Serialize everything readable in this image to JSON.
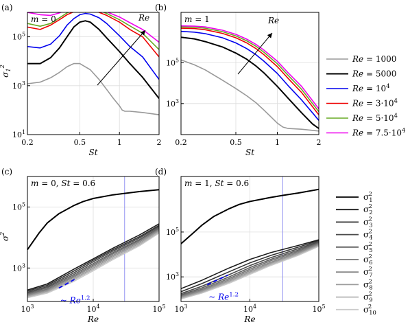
{
  "colors": {
    "gray": "#999999",
    "black": "#000000",
    "blue": "#0000ee",
    "red": "#ee0000",
    "green": "#66aa22",
    "magenta": "#ee00ee",
    "guide": "#7777ee",
    "fitline": "#0000ee"
  },
  "legend_top": {
    "entries": [
      {
        "label": "Re = 1000",
        "color": "#999999"
      },
      {
        "label": "Re = 5000",
        "color": "#000000"
      },
      {
        "label": "Re = 10^4",
        "color": "#0000ee"
      },
      {
        "label": "Re = 3·10^4",
        "color": "#ee0000"
      },
      {
        "label": "Re = 5·10^4",
        "color": "#66aa22"
      },
      {
        "label": "Re = 7.5·10^4",
        "color": "#ee00ee"
      }
    ]
  },
  "legend_bottom": {
    "entries": [
      {
        "label": "σ1²",
        "shade": "#000000"
      },
      {
        "label": "σ2²",
        "shade": "#1c1c1c"
      },
      {
        "label": "σ3²",
        "shade": "#333333"
      },
      {
        "label": "σ4²",
        "shade": "#4a4a4a"
      },
      {
        "label": "σ5²",
        "shade": "#5e5e5e"
      },
      {
        "label": "σ6²",
        "shade": "#737373"
      },
      {
        "label": "σ7²",
        "shade": "#888888"
      },
      {
        "label": "σ8²",
        "shade": "#9c9c9c"
      },
      {
        "label": "σ9²",
        "shade": "#b3b3b3"
      },
      {
        "label": "σ10²",
        "shade": "#cccccc"
      }
    ]
  },
  "chart_data": [
    {
      "panel": "(a)",
      "type": "line",
      "annotation": "m = 0",
      "arrow_label": "Re",
      "xlabel": "St",
      "ylabel": "σ1²",
      "xscale": "log",
      "yscale": "log",
      "xlim": [
        0.2,
        2
      ],
      "ylim": [
        10,
        1000000
      ],
      "xticks": [
        "0.2",
        "0.5",
        "1",
        "2"
      ],
      "yticks": [
        "10^1",
        "10^3",
        "10^5"
      ],
      "grid": true,
      "series": [
        {
          "name": "Re = 1000",
          "x": [
            0.2,
            0.25,
            0.3,
            0.35,
            0.4,
            0.45,
            0.5,
            0.6,
            0.7,
            0.8,
            0.9,
            1.0,
            1.05,
            1.1,
            1.2,
            1.5,
            2.0
          ],
          "y": [
            1200,
            1400,
            2100,
            3500,
            6000,
            8000,
            8000,
            4500,
            1800,
            700,
            300,
            150,
            100,
            90,
            90,
            80,
            65
          ]
        },
        {
          "name": "Re = 5000",
          "x": [
            0.2,
            0.25,
            0.3,
            0.35,
            0.4,
            0.45,
            0.5,
            0.55,
            0.6,
            0.7,
            0.8,
            1.0,
            1.2,
            1.5,
            2.0
          ],
          "y": [
            8000,
            8000,
            14000,
            35000,
            100000,
            250000,
            400000,
            450000,
            400000,
            200000,
            90000,
            25000,
            8000,
            2200,
            300
          ]
        },
        {
          "name": "Re = 10^4",
          "x": [
            0.2,
            0.25,
            0.3,
            0.35,
            0.4,
            0.45,
            0.5,
            0.55,
            0.6,
            0.7,
            0.8,
            1.0,
            1.2,
            1.5,
            2.0
          ],
          "y": [
            40000,
            35000,
            50000,
            110000,
            300000,
            550000,
            800000,
            900000,
            850000,
            600000,
            350000,
            110000,
            40000,
            15000,
            1800
          ]
        },
        {
          "name": "Re = 3·10^4",
          "x": [
            0.2,
            0.25,
            0.3,
            0.35,
            0.4,
            0.45,
            0.5,
            0.55,
            0.6,
            0.7,
            0.8,
            1.0,
            1.2,
            1.5,
            2.0
          ],
          "y": [
            250000,
            200000,
            300000,
            500000,
            800000,
            1050000,
            1250000,
            1350000,
            1300000,
            1000000,
            750000,
            400000,
            200000,
            100000,
            15000
          ]
        },
        {
          "name": "Re = 5·10^4",
          "x": [
            0.2,
            0.25,
            0.3,
            0.35,
            0.4,
            0.45,
            0.5,
            0.55,
            0.6,
            0.7,
            0.8,
            1.0,
            1.2,
            1.5,
            2.0
          ],
          "y": [
            350000,
            270000,
            350000,
            600000,
            950000,
            1250000,
            1450000,
            1550000,
            1500000,
            1200000,
            900000,
            500000,
            280000,
            140000,
            30000
          ]
        },
        {
          "name": "Re = 7.5·10^4",
          "x": [
            0.2,
            0.25,
            0.3,
            0.35,
            0.4,
            0.45,
            0.5,
            0.55,
            0.6,
            0.7,
            0.8,
            1.0,
            1.2,
            1.5,
            2.0
          ],
          "y": [
            1000000,
            800000,
            750000,
            950000,
            1250000,
            1450000,
            1600000,
            1650000,
            1600000,
            1350000,
            1050000,
            650000,
            380000,
            200000,
            60000
          ]
        }
      ]
    },
    {
      "panel": "(b)",
      "type": "line",
      "annotation": "m = 1",
      "arrow_label": "Re",
      "xlabel": "St",
      "xscale": "log",
      "yscale": "log",
      "xlim": [
        0.2,
        2
      ],
      "ylim": [
        30,
        30000000
      ],
      "xticks": [
        "0.2",
        "0.5",
        "1",
        "2"
      ],
      "yticks": [
        "10^3",
        "10^5"
      ],
      "grid": true,
      "series": [
        {
          "name": "Re = 1000",
          "x": [
            0.2,
            0.25,
            0.3,
            0.4,
            0.5,
            0.6,
            0.7,
            0.8,
            0.9,
            1.0,
            1.1,
            1.2,
            1.5,
            2.0
          ],
          "y": [
            140000,
            80000,
            45000,
            14000,
            5500,
            2400,
            1100,
            480,
            220,
            110,
            70,
            60,
            55,
            45
          ]
        },
        {
          "name": "Re = 5000",
          "x": [
            0.2,
            0.25,
            0.3,
            0.4,
            0.5,
            0.6,
            0.7,
            0.8,
            1.0,
            1.2,
            1.5,
            1.8,
            2.0
          ],
          "y": [
            1800000,
            1500000,
            1100000,
            600000,
            300000,
            150000,
            70000,
            32000,
            7000,
            1800,
            350,
            100,
            60
          ]
        },
        {
          "name": "Re = 10^4",
          "x": [
            0.2,
            0.25,
            0.3,
            0.4,
            0.5,
            0.6,
            0.7,
            0.8,
            1.0,
            1.2,
            1.5,
            1.8,
            2.0
          ],
          "y": [
            3500000,
            3200000,
            2700000,
            1700000,
            950000,
            500000,
            250000,
            120000,
            30000,
            7500,
            1500,
            350,
            150
          ]
        },
        {
          "name": "Re = 3·10^4",
          "x": [
            0.2,
            0.25,
            0.3,
            0.4,
            0.5,
            0.6,
            0.7,
            0.8,
            1.0,
            1.2,
            1.5,
            1.8,
            2.0
          ],
          "y": [
            5000000,
            4800000,
            4200000,
            2800000,
            1700000,
            950000,
            500000,
            250000,
            65000,
            17000,
            3500,
            700,
            280
          ]
        },
        {
          "name": "Re = 5·10^4",
          "x": [
            0.2,
            0.25,
            0.3,
            0.4,
            0.5,
            0.6,
            0.7,
            0.8,
            1.0,
            1.2,
            1.5,
            1.8,
            2.0
          ],
          "y": [
            5800000,
            5600000,
            5000000,
            3400000,
            2100000,
            1200000,
            650000,
            330000,
            90000,
            24000,
            5000,
            1000,
            400
          ]
        },
        {
          "name": "Re = 7.5·10^4",
          "x": [
            0.2,
            0.25,
            0.3,
            0.4,
            0.5,
            0.6,
            0.7,
            0.8,
            1.0,
            1.2,
            1.5,
            1.8,
            2.0
          ],
          "y": [
            6500000,
            6300000,
            5800000,
            4000000,
            2500000,
            1450000,
            800000,
            420000,
            120000,
            32000,
            7000,
            1400,
            550
          ]
        }
      ]
    },
    {
      "panel": "(c)",
      "type": "line",
      "annotation": "m = 0, St = 0.6",
      "fit_label": "~ Re^1.2",
      "xlabel": "Re",
      "ylabel": "σ²",
      "xscale": "log",
      "yscale": "log",
      "xlim": [
        1000,
        100000
      ],
      "ylim": [
        80,
        1000000
      ],
      "xticks": [
        "10^3",
        "10^4",
        "10^5"
      ],
      "yticks": [
        "10^3",
        "10^5"
      ],
      "guide_x": 30000,
      "grid": true,
      "series": [
        {
          "name": "σ1²",
          "x": [
            1000,
            1500,
            2000,
            3000,
            5000,
            7000,
            10000,
            20000,
            30000,
            50000,
            100000
          ],
          "y": [
            4000,
            14000,
            30000,
            60000,
            110000,
            150000,
            190000,
            250000,
            280000,
            320000,
            370000
          ]
        },
        {
          "name": "σ2²",
          "x": [
            1000,
            2000,
            5000,
            10000,
            20000,
            50000,
            100000
          ],
          "y": [
            190,
            300,
            900,
            2000,
            4500,
            12000,
            28000
          ]
        },
        {
          "name": "σ3²",
          "x": [
            1000,
            2000,
            5000,
            10000,
            20000,
            50000,
            100000
          ],
          "y": [
            175,
            270,
            780,
            1800,
            4000,
            10500,
            25000
          ]
        },
        {
          "name": "σ4²",
          "x": [
            1000,
            2000,
            5000,
            10000,
            20000,
            50000,
            100000
          ],
          "y": [
            160,
            245,
            680,
            1600,
            3600,
            9500,
            23000
          ]
        },
        {
          "name": "σ5²",
          "x": [
            1000,
            2000,
            5000,
            10000,
            20000,
            50000,
            100000
          ],
          "y": [
            150,
            225,
            600,
            1400,
            3200,
            8500,
            21000
          ]
        },
        {
          "name": "σ6²",
          "x": [
            1000,
            2000,
            5000,
            10000,
            20000,
            50000,
            100000
          ],
          "y": [
            140,
            205,
            540,
            1250,
            2900,
            7800,
            19500
          ]
        },
        {
          "name": "σ7²",
          "x": [
            1000,
            2000,
            5000,
            10000,
            20000,
            50000,
            100000
          ],
          "y": [
            130,
            190,
            490,
            1120,
            2600,
            7100,
            18000
          ]
        },
        {
          "name": "σ8²",
          "x": [
            1000,
            2000,
            5000,
            10000,
            20000,
            50000,
            100000
          ],
          "y": [
            122,
            175,
            440,
            1000,
            2350,
            6400,
            16500
          ]
        },
        {
          "name": "σ9²",
          "x": [
            1000,
            2000,
            5000,
            10000,
            20000,
            50000,
            100000
          ],
          "y": [
            114,
            162,
            400,
            900,
            2100,
            5800,
            15000
          ]
        },
        {
          "name": "σ10²",
          "x": [
            1000,
            2000,
            5000,
            10000,
            20000,
            50000,
            100000
          ],
          "y": [
            106,
            150,
            360,
            810,
            1900,
            5300,
            14000
          ]
        }
      ],
      "fit": {
        "x": [
          3000,
          5600
        ],
        "y": [
          220,
          460
        ]
      }
    },
    {
      "panel": "(d)",
      "type": "line",
      "annotation": "m = 1, St = 0.6",
      "fit_label": "~ Re^1.2",
      "xlabel": "Re",
      "xscale": "log",
      "yscale": "log",
      "xlim": [
        1000,
        100000
      ],
      "ylim": [
        80,
        30000000
      ],
      "xticks": [
        "10^3",
        "10^4",
        "10^5"
      ],
      "yticks": [
        "10^3",
        "10^5"
      ],
      "guide_x": 30000,
      "grid": true,
      "series": [
        {
          "name": "σ1²",
          "x": [
            1000,
            1500,
            2000,
            3000,
            5000,
            7000,
            10000,
            20000,
            30000,
            50000,
            100000
          ],
          "y": [
            30000,
            90000,
            200000,
            500000,
            1100000,
            1700000,
            2300000,
            3500000,
            4300000,
            5500000,
            8000000
          ]
        },
        {
          "name": "σ2²",
          "x": [
            1000,
            2000,
            5000,
            10000,
            20000,
            50000,
            100000
          ],
          "y": [
            300,
            700,
            2500,
            6000,
            12000,
            25000,
            45000
          ]
        },
        {
          "name": "σ3²",
          "x": [
            1000,
            2000,
            5000,
            10000,
            20000,
            50000,
            100000
          ],
          "y": [
            220,
            500,
            1700,
            4200,
            9000,
            21000,
            42000
          ]
        },
        {
          "name": "σ4²",
          "x": [
            1000,
            2000,
            5000,
            10000,
            20000,
            50000,
            100000
          ],
          "y": [
            180,
            380,
            1250,
            3200,
            7200,
            18000,
            38000
          ]
        },
        {
          "name": "σ5²",
          "x": [
            1000,
            2000,
            5000,
            10000,
            20000,
            50000,
            100000
          ],
          "y": [
            160,
            320,
            1000,
            2600,
            6000,
            15500,
            35000
          ]
        },
        {
          "name": "σ6²",
          "x": [
            1000,
            2000,
            5000,
            10000,
            20000,
            50000,
            100000
          ],
          "y": [
            145,
            280,
            850,
            2200,
            5200,
            13800,
            32000
          ]
        },
        {
          "name": "σ7²",
          "x": [
            1000,
            2000,
            5000,
            10000,
            20000,
            50000,
            100000
          ],
          "y": [
            132,
            250,
            740,
            1900,
            4500,
            12300,
            29000
          ]
        },
        {
          "name": "σ8²",
          "x": [
            1000,
            2000,
            5000,
            10000,
            20000,
            50000,
            100000
          ],
          "y": [
            122,
            225,
            650,
            1650,
            4000,
            11000,
            27000
          ]
        },
        {
          "name": "σ9²",
          "x": [
            1000,
            2000,
            5000,
            10000,
            20000,
            50000,
            100000
          ],
          "y": [
            112,
            205,
            580,
            1450,
            3550,
            9900,
            25000
          ]
        },
        {
          "name": "σ10²",
          "x": [
            1000,
            2000,
            5000,
            10000,
            20000,
            50000,
            100000
          ],
          "y": [
            104,
            188,
            520,
            1300,
            3200,
            9000,
            23000
          ]
        }
      ],
      "fit": {
        "x": [
          2400,
          4800
        ],
        "y": [
          450,
          1200
        ]
      }
    }
  ]
}
